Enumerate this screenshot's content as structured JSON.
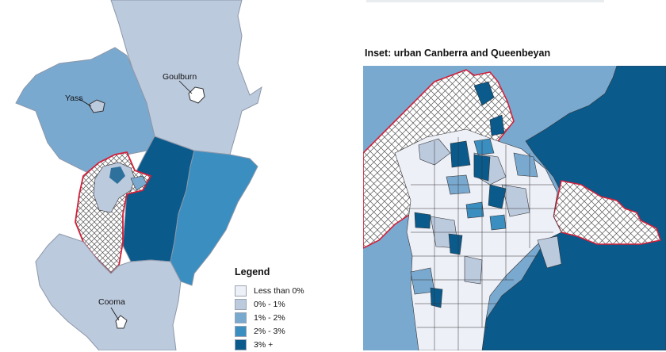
{
  "inset_title": "Inset:  urban Canberra and Queenbeyan",
  "legend": {
    "title": "Legend",
    "items": [
      {
        "label": "Less than 0%",
        "color": "#eef0f8"
      },
      {
        "label": "0% - 1%",
        "color": "#bccade"
      },
      {
        "label": "1% - 2%",
        "color": "#7aa9d0"
      },
      {
        "label": "2% - 3%",
        "color": "#3b8ec0"
      },
      {
        "label": "3% +",
        "color": "#0b5a8c"
      }
    ]
  },
  "towns": {
    "yass": "Yass",
    "goulburn": "Goulburn",
    "cooma": "Cooma"
  },
  "colors": {
    "boundary": "#d1213a",
    "region_line": "#8c97a8",
    "hatch": "#555555"
  }
}
